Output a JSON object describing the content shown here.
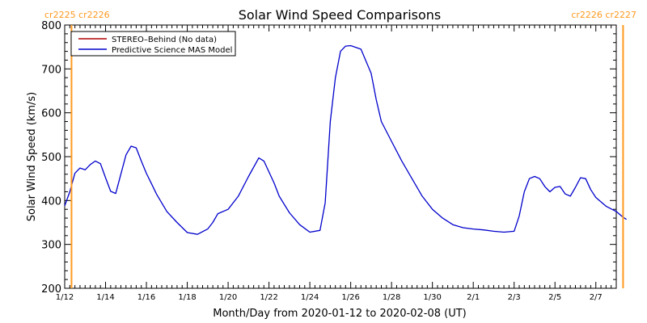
{
  "colors": {
    "background": "#ffffff",
    "axis": "#000000",
    "series_line": "#0000cc",
    "stereo_line": "#b00000",
    "carrington": "#ff9a1f"
  },
  "chart_data": {
    "type": "line",
    "title": "Solar Wind Speed Comparisons",
    "xlabel": "Month/Day from 2020-01-12 to 2020-02-08 (UT)",
    "ylabel": "Solar Wind Speed (km/s)",
    "xlim": [
      "2020-01-12",
      "2020-02-08"
    ],
    "ylim": [
      200,
      800
    ],
    "yticks": [
      200,
      300,
      400,
      500,
      600,
      700,
      800
    ],
    "xticks": [
      {
        "date": "2020-01-12",
        "label": "1/12"
      },
      {
        "date": "2020-01-14",
        "label": "1/14"
      },
      {
        "date": "2020-01-16",
        "label": "1/16"
      },
      {
        "date": "2020-01-18",
        "label": "1/18"
      },
      {
        "date": "2020-01-20",
        "label": "1/20"
      },
      {
        "date": "2020-01-22",
        "label": "1/22"
      },
      {
        "date": "2020-01-24",
        "label": "1/24"
      },
      {
        "date": "2020-01-26",
        "label": "1/26"
      },
      {
        "date": "2020-01-28",
        "label": "1/28"
      },
      {
        "date": "2020-01-30",
        "label": "1/30"
      },
      {
        "date": "2020-02-01",
        "label": "2/1"
      },
      {
        "date": "2020-02-03",
        "label": "2/3"
      },
      {
        "date": "2020-02-05",
        "label": "2/5"
      },
      {
        "date": "2020-02-07",
        "label": "2/7"
      }
    ],
    "grid": false,
    "legend_position": "top-left",
    "carrington_markers": [
      {
        "date": "2020-01-12 08:00",
        "labels": [
          "cr2225",
          "cr2226"
        ],
        "label_side": "left"
      },
      {
        "date": "2020-02-08 08:00",
        "labels": [
          "cr2226",
          "cr2227"
        ],
        "label_side": "right"
      }
    ],
    "series": [
      {
        "name": "STEREO–Behind (No data)",
        "color": "#b00000",
        "x": [],
        "y": []
      },
      {
        "name": "Predictive Science MAS Model",
        "color": "#0000cc",
        "x": [
          "2020-01-12 00:00",
          "2020-01-12 06:00",
          "2020-01-12 12:00",
          "2020-01-12 18:00",
          "2020-01-13 00:00",
          "2020-01-13 06:00",
          "2020-01-13 12:00",
          "2020-01-13 18:00",
          "2020-01-14 00:00",
          "2020-01-14 06:00",
          "2020-01-14 12:00",
          "2020-01-15 00:00",
          "2020-01-15 06:00",
          "2020-01-15 12:00",
          "2020-01-15 18:00",
          "2020-01-16 00:00",
          "2020-01-16 06:00",
          "2020-01-16 12:00",
          "2020-01-17 00:00",
          "2020-01-17 12:00",
          "2020-01-18 00:00",
          "2020-01-18 12:00",
          "2020-01-19 00:00",
          "2020-01-19 06:00",
          "2020-01-19 12:00",
          "2020-01-20 00:00",
          "2020-01-20 12:00",
          "2020-01-21 00:00",
          "2020-01-21 12:00",
          "2020-01-21 18:00",
          "2020-01-22 00:00",
          "2020-01-22 06:00",
          "2020-01-22 12:00",
          "2020-01-23 00:00",
          "2020-01-23 12:00",
          "2020-01-24 00:00",
          "2020-01-24 12:00",
          "2020-01-24 18:00",
          "2020-01-25 00:00",
          "2020-01-25 06:00",
          "2020-01-25 12:00",
          "2020-01-25 18:00",
          "2020-01-26 00:00",
          "2020-01-26 12:00",
          "2020-01-27 00:00",
          "2020-01-27 06:00",
          "2020-01-27 12:00",
          "2020-01-28 00:00",
          "2020-01-28 12:00",
          "2020-01-29 00:00",
          "2020-01-29 12:00",
          "2020-01-30 00:00",
          "2020-01-30 12:00",
          "2020-01-31 00:00",
          "2020-01-31 12:00",
          "2020-02-01 00:00",
          "2020-02-01 12:00",
          "2020-02-02 00:00",
          "2020-02-02 12:00",
          "2020-02-03 00:00",
          "2020-02-03 06:00",
          "2020-02-03 12:00",
          "2020-02-03 18:00",
          "2020-02-04 00:00",
          "2020-02-04 06:00",
          "2020-02-04 12:00",
          "2020-02-04 18:00",
          "2020-02-05 00:00",
          "2020-02-05 06:00",
          "2020-02-05 12:00",
          "2020-02-05 18:00",
          "2020-02-06 00:00",
          "2020-02-06 06:00",
          "2020-02-06 12:00",
          "2020-02-06 18:00",
          "2020-02-07 00:00",
          "2020-02-07 12:00",
          "2020-02-08 00:00",
          "2020-02-08 08:00",
          "2020-02-08 12:00"
        ],
        "y": [
          388,
          420,
          462,
          474,
          470,
          482,
          490,
          484,
          452,
          421,
          416,
          504,
          524,
          520,
          490,
          462,
          438,
          414,
          375,
          350,
          327,
          323,
          335,
          350,
          370,
          380,
          410,
          455,
          497,
          490,
          465,
          440,
          410,
          372,
          345,
          328,
          332,
          395,
          580,
          680,
          740,
          752,
          753,
          745,
          690,
          630,
          580,
          535,
          490,
          450,
          410,
          380,
          360,
          345,
          338,
          335,
          333,
          330,
          328,
          330,
          365,
          420,
          450,
          455,
          450,
          432,
          420,
          430,
          432,
          415,
          410,
          430,
          452,
          450,
          425,
          407,
          387,
          375,
          362,
          357
        ]
      }
    ]
  }
}
